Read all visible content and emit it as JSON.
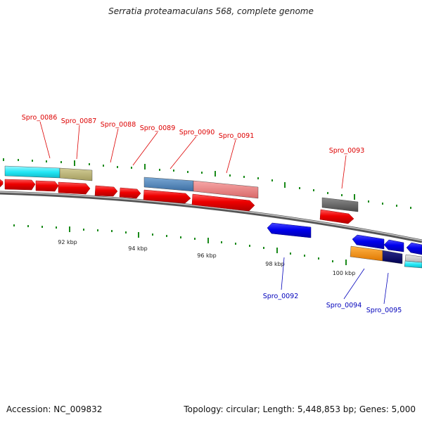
{
  "title": "Serratia proteamaculans 568, complete genome",
  "accession_text": "Accession: NC_009832",
  "summary_text": "Topology: circular; Length: 5,448,853 bp; Genes: 5,000",
  "colors": {
    "forward_label": "#dd0000",
    "reverse_label": "#0000bb",
    "tick": "#1a8a1a",
    "backbone": "#888888"
  },
  "scale_labels": [
    "92 kbp",
    "94 kbp",
    "96 kbp",
    "98 kbp",
    "100 kbp"
  ],
  "forward_labels": [
    "Spro_0086",
    "Spro_0087",
    "Spro_0088",
    "Spro_0089",
    "Spro_0090",
    "Spro_0091",
    "Spro_0093"
  ],
  "reverse_labels": [
    "Spro_0092",
    "Spro_0094",
    "Spro_0095"
  ]
}
